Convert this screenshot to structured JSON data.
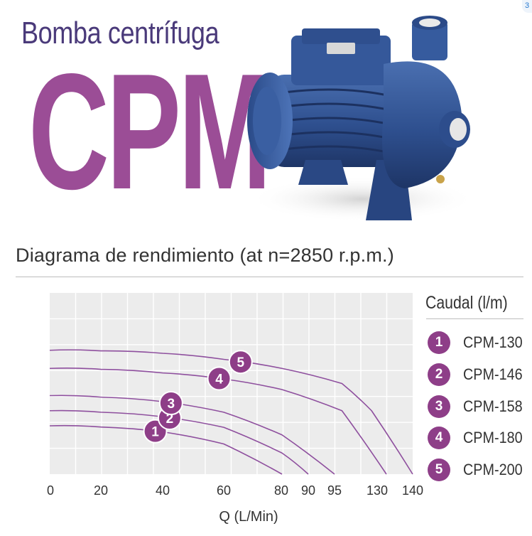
{
  "header": {
    "subtitle": "Bomba centrífuga",
    "model": "CPM",
    "corner_mark": "3"
  },
  "section": {
    "title": "Diagrama de rendimiento (at n=2850 r.p.m.)"
  },
  "legend": {
    "title": "Caudal (l/m)",
    "items": [
      {
        "number": "1",
        "label": "CPM-130"
      },
      {
        "number": "2",
        "label": "CPM-146"
      },
      {
        "number": "3",
        "label": "CPM-158"
      },
      {
        "number": "4",
        "label": "CPM-180"
      },
      {
        "number": "5",
        "label": "CPM-200"
      }
    ]
  },
  "colors": {
    "accent": "#9b4d96",
    "badge": "#8e3e88",
    "curve": "#8e4f9e",
    "grid_bg": "#ececec",
    "grid_line": "#ffffff",
    "subtitle": "#4a3a7a"
  },
  "chart_data": {
    "type": "line",
    "xlabel": "Q (L/Min)",
    "ylabel": "",
    "x_ticks": [
      "0",
      "20",
      "40",
      "60",
      "80",
      "90",
      "95",
      "130",
      "140"
    ],
    "grid": true,
    "legend_position": "right",
    "series": [
      {
        "name": "CPM-130",
        "marker": "1",
        "shutoff_flow": 80,
        "x": [
          0,
          20,
          40,
          60,
          80
        ],
        "y": [
          16,
          15.6,
          14,
          10,
          0
        ]
      },
      {
        "name": "CPM-146",
        "marker": "2",
        "shutoff_flow": 90,
        "x": [
          0,
          20,
          40,
          60,
          80,
          90
        ],
        "y": [
          21,
          20.5,
          19,
          15.5,
          7,
          0
        ]
      },
      {
        "name": "CPM-158",
        "marker": "3",
        "shutoff_flow": 95,
        "x": [
          0,
          20,
          40,
          60,
          80,
          95
        ],
        "y": [
          26,
          25.5,
          24,
          20.5,
          13,
          0
        ]
      },
      {
        "name": "CPM-180",
        "marker": "4",
        "shutoff_flow": 130,
        "x": [
          0,
          20,
          40,
          60,
          80,
          100,
          130
        ],
        "y": [
          35,
          34.7,
          33.5,
          31.5,
          28,
          21,
          0
        ]
      },
      {
        "name": "CPM-200",
        "marker": "5",
        "shutoff_flow": 140,
        "x": [
          0,
          20,
          40,
          60,
          80,
          100,
          120,
          140
        ],
        "y": [
          41,
          40.8,
          40,
          38,
          35,
          30,
          21,
          0
        ]
      }
    ]
  }
}
